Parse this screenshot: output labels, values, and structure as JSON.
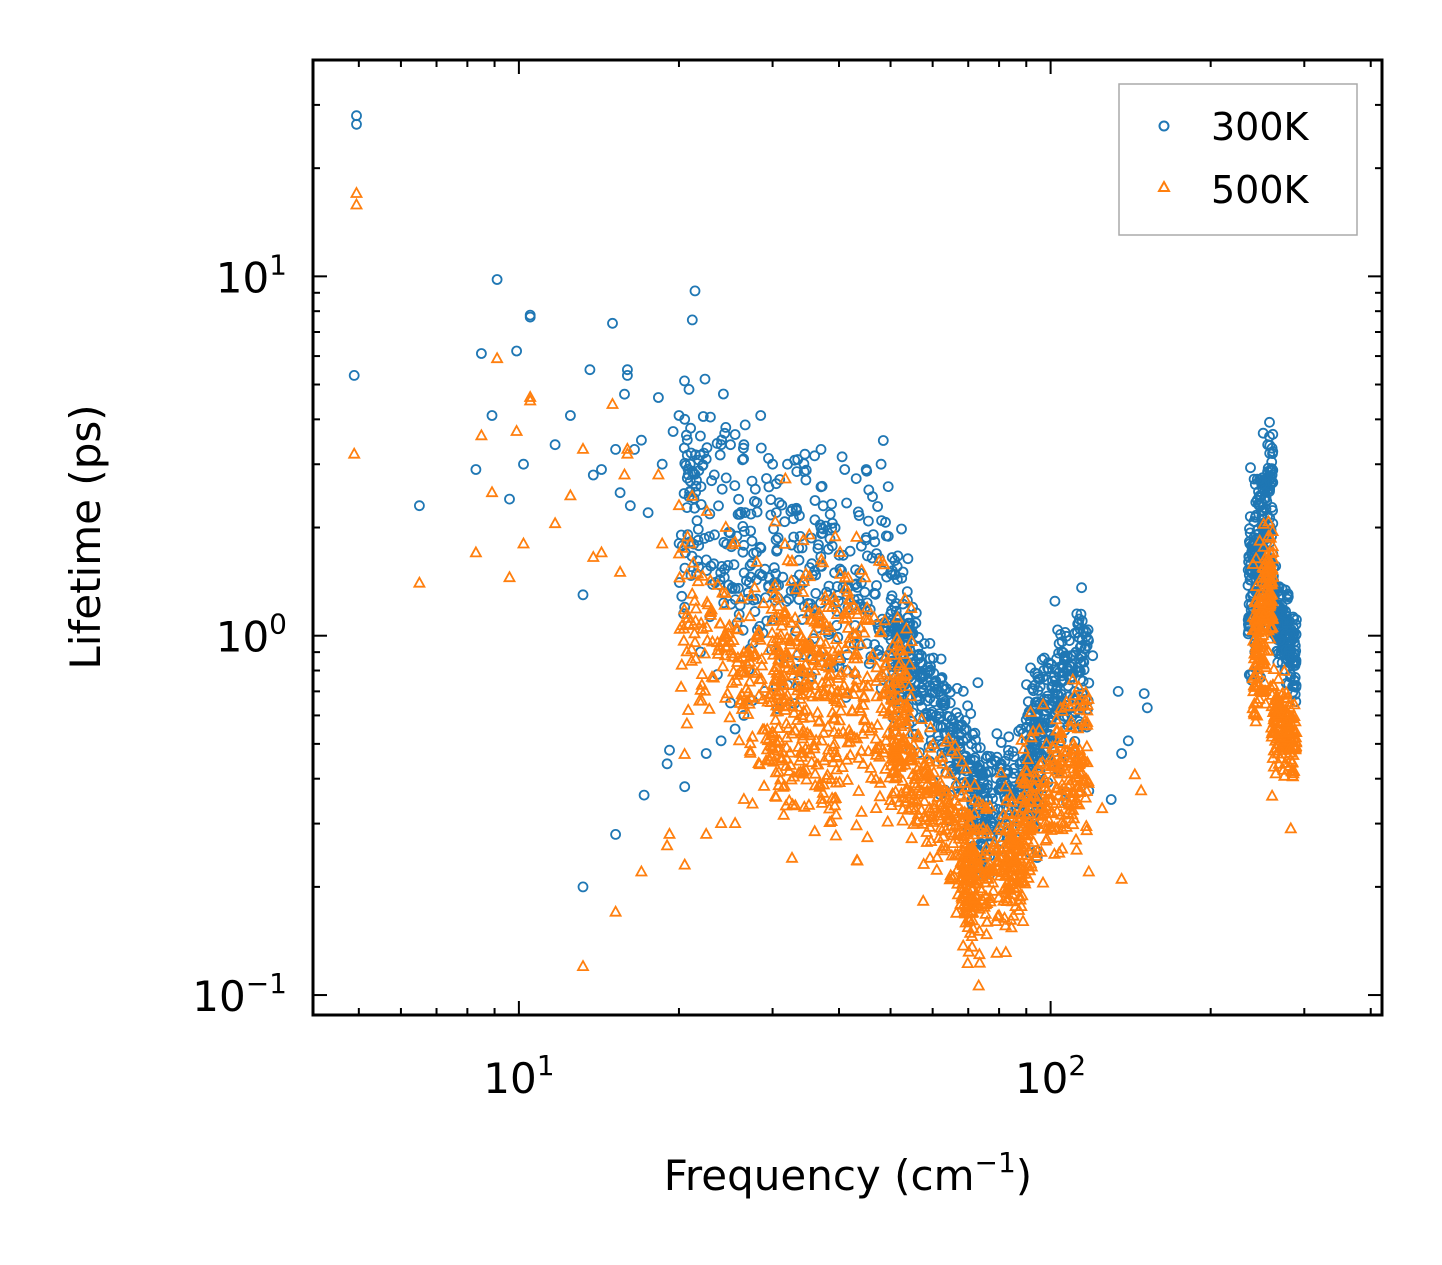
{
  "chart_data": {
    "type": "scatter",
    "title": "",
    "xlabel": "Frequency (cm",
    "xlabel_sup": "−1",
    "xlabel_end": ")",
    "ylabel": "Lifetime (ps)",
    "xscale": "log",
    "yscale": "log",
    "xlim": [
      4.1,
      420
    ],
    "ylim": [
      0.088,
      40
    ],
    "x_ticks": [
      {
        "value": 10,
        "base": "10",
        "exp": "1"
      },
      {
        "value": 100,
        "base": "10",
        "exp": "2"
      }
    ],
    "y_ticks": [
      {
        "value": 0.1,
        "base": "10",
        "exp": "−1"
      },
      {
        "value": 1,
        "base": "10",
        "exp": "0"
      },
      {
        "value": 10,
        "base": "10",
        "exp": "1"
      }
    ],
    "legend": {
      "position": "top-right",
      "entries": [
        "300K",
        "500K"
      ]
    },
    "series": [
      {
        "name": "300K",
        "marker": "circle",
        "color": "#1f77b4",
        "points": [
          [
            4.95,
            28.0
          ],
          [
            4.95,
            26.5
          ],
          [
            4.9,
            5.3
          ],
          [
            6.5,
            2.3
          ],
          [
            8.3,
            2.9
          ],
          [
            8.5,
            6.1
          ],
          [
            8.9,
            4.1
          ],
          [
            9.1,
            9.8
          ],
          [
            9.6,
            2.4
          ],
          [
            9.9,
            6.2
          ],
          [
            10.2,
            3.0
          ],
          [
            10.5,
            7.8
          ],
          [
            10.5,
            7.7
          ],
          [
            11.7,
            3.4
          ],
          [
            12.5,
            4.1
          ],
          [
            13.2,
            1.3
          ],
          [
            13.6,
            5.5
          ],
          [
            13.8,
            2.8
          ],
          [
            14.3,
            2.9
          ],
          [
            15.0,
            7.4
          ],
          [
            15.2,
            3.3
          ],
          [
            15.5,
            2.5
          ],
          [
            15.8,
            4.7
          ],
          [
            16.0,
            5.5
          ],
          [
            16.0,
            5.3
          ],
          [
            16.2,
            2.3
          ],
          [
            16.5,
            3.3
          ],
          [
            17.0,
            3.5
          ],
          [
            17.5,
            2.2
          ],
          [
            18.3,
            4.6
          ],
          [
            18.6,
            3.0
          ],
          [
            19.5,
            3.7
          ],
          [
            20.0,
            4.1
          ],
          [
            20.5,
            4.0
          ],
          [
            20.5,
            1.2
          ],
          [
            21.0,
            3.0
          ],
          [
            22.0,
            2.6
          ],
          [
            22.5,
            3.1
          ],
          [
            24.0,
            3.4
          ],
          [
            24.5,
            3.8
          ],
          [
            25.0,
            3.4
          ],
          [
            26.5,
            3.4
          ],
          [
            28.5,
            4.1
          ],
          [
            30.0,
            3.0
          ],
          [
            32.0,
            3.0
          ],
          [
            34.5,
            3.2
          ],
          [
            37.0,
            3.3
          ],
          [
            41.0,
            2.9
          ],
          [
            45.0,
            2.9
          ],
          [
            48.0,
            3.0
          ],
          [
            49.5,
            2.6
          ],
          [
            55.0,
            1.2
          ],
          [
            73.0,
            0.74
          ],
          [
            66.5,
            0.61
          ],
          [
            112.0,
            1.15
          ],
          [
            120.0,
            0.88
          ],
          [
            134.0,
            0.7
          ],
          [
            150.0,
            0.69
          ],
          [
            152.0,
            0.63
          ],
          [
            13.2,
            0.2
          ],
          [
            15.2,
            0.28
          ],
          [
            17.2,
            0.36
          ],
          [
            19.0,
            0.44
          ],
          [
            19.2,
            0.48
          ],
          [
            20.5,
            0.38
          ],
          [
            22.5,
            0.47
          ],
          [
            24.0,
            0.51
          ],
          [
            25.5,
            0.55
          ],
          [
            25.0,
            0.65
          ],
          [
            26.5,
            0.6
          ],
          [
            27.5,
            0.66
          ],
          [
            29.0,
            0.7
          ],
          [
            30.5,
            0.72
          ],
          [
            32.0,
            0.73
          ],
          [
            33.5,
            0.75
          ],
          [
            35.5,
            0.77
          ],
          [
            118.0,
            0.37
          ],
          [
            130.0,
            0.35
          ],
          [
            136.0,
            0.47
          ],
          [
            140.0,
            0.51
          ],
          [
            252.0,
            1.7
          ],
          [
            256.0,
            3.4
          ],
          [
            283.0,
            0.78
          ],
          [
            285.0,
            0.88
          ]
        ],
        "regions": [
          {
            "x": [
              20,
              55
            ],
            "logy_mid": [
              0.38,
              0.02
            ],
            "spread": 0.17,
            "n": 420,
            "seed": 11
          },
          {
            "x": [
              50,
              75
            ],
            "logy_mid": [
              0.02,
              -0.46
            ],
            "spread": 0.09,
            "n": 300,
            "seed": 12
          },
          {
            "x": [
              70,
              95
            ],
            "logy_mid": [
              -0.52,
              -0.4
            ],
            "spread": 0.09,
            "n": 240,
            "seed": 13
          },
          {
            "x": [
              90,
              118
            ],
            "logy_mid": [
              -0.3,
              -0.05
            ],
            "spread": 0.1,
            "n": 260,
            "seed": 14
          },
          {
            "x": [
              235,
              262
            ],
            "logy_mid": [
              0.1,
              0.42
            ],
            "spread": 0.12,
            "n": 220,
            "seed": 15
          },
          {
            "x": [
              260,
              290
            ],
            "logy_mid": [
              0.1,
              -0.08
            ],
            "spread": 0.06,
            "n": 180,
            "seed": 16
          }
        ]
      },
      {
        "name": "500K",
        "marker": "triangle",
        "color": "#ff7f0e",
        "points": [
          [
            4.95,
            17.0
          ],
          [
            4.95,
            15.8
          ],
          [
            4.9,
            3.2
          ],
          [
            6.5,
            1.4
          ],
          [
            8.3,
            1.7
          ],
          [
            8.5,
            3.6
          ],
          [
            8.9,
            2.5
          ],
          [
            9.1,
            5.9
          ],
          [
            9.6,
            1.45
          ],
          [
            9.9,
            3.7
          ],
          [
            10.2,
            1.8
          ],
          [
            10.5,
            4.6
          ],
          [
            10.5,
            4.5
          ],
          [
            11.7,
            2.05
          ],
          [
            12.5,
            2.45
          ],
          [
            13.2,
            0.12
          ],
          [
            13.8,
            1.65
          ],
          [
            14.3,
            1.7
          ],
          [
            15.0,
            4.4
          ],
          [
            15.2,
            0.17
          ],
          [
            15.5,
            1.5
          ],
          [
            15.8,
            2.8
          ],
          [
            16.0,
            3.3
          ],
          [
            16.0,
            3.2
          ],
          [
            17.0,
            0.22
          ],
          [
            18.3,
            2.8
          ],
          [
            18.6,
            1.8
          ],
          [
            19.0,
            0.26
          ],
          [
            19.2,
            0.28
          ],
          [
            20.5,
            0.23
          ],
          [
            22.5,
            0.28
          ],
          [
            24.0,
            0.3
          ],
          [
            25.5,
            0.3
          ],
          [
            26.5,
            0.35
          ],
          [
            27.5,
            0.34
          ],
          [
            13.2,
            3.3
          ],
          [
            20.0,
            2.3
          ],
          [
            21.0,
            1.8
          ],
          [
            24.5,
            2.0
          ],
          [
            28.0,
            1.6
          ],
          [
            67.0,
            0.19
          ],
          [
            118.0,
            0.22
          ],
          [
            125.0,
            0.33
          ],
          [
            136.0,
            0.21
          ],
          [
            144.0,
            0.41
          ],
          [
            148.0,
            0.37
          ],
          [
            252.0,
            0.7
          ],
          [
            283.0,
            0.29
          ]
        ],
        "regions": [
          {
            "x": [
              20,
              35
            ],
            "logy_mid": [
              0.05,
              -0.18
            ],
            "spread": 0.12,
            "n": 220,
            "seed": 21
          },
          {
            "x": [
              30,
              55
            ],
            "logy_mid": [
              -0.1,
              -0.2
            ],
            "spread": 0.17,
            "n": 420,
            "seed": 22
          },
          {
            "x": [
              50,
              72
            ],
            "logy_mid": [
              -0.28,
              -0.62
            ],
            "spread": 0.09,
            "n": 280,
            "seed": 23
          },
          {
            "x": [
              68,
              90
            ],
            "logy_mid": [
              -0.7,
              -0.62
            ],
            "spread": 0.1,
            "n": 280,
            "seed": 24
          },
          {
            "x": [
              88,
              118
            ],
            "logy_mid": [
              -0.52,
              -0.32
            ],
            "spread": 0.1,
            "n": 240,
            "seed": 25
          },
          {
            "x": [
              240,
              262
            ],
            "logy_mid": [
              -0.05,
              0.15
            ],
            "spread": 0.11,
            "n": 180,
            "seed": 26
          },
          {
            "x": [
              260,
              290
            ],
            "logy_mid": [
              -0.22,
              -0.3
            ],
            "spread": 0.06,
            "n": 160,
            "seed": 27
          },
          {
            "x": [
              28,
              40
            ],
            "logy_mid": [
              -0.3,
              -0.45
            ],
            "spread": 0.06,
            "n": 60,
            "seed": 28
          }
        ]
      }
    ]
  }
}
